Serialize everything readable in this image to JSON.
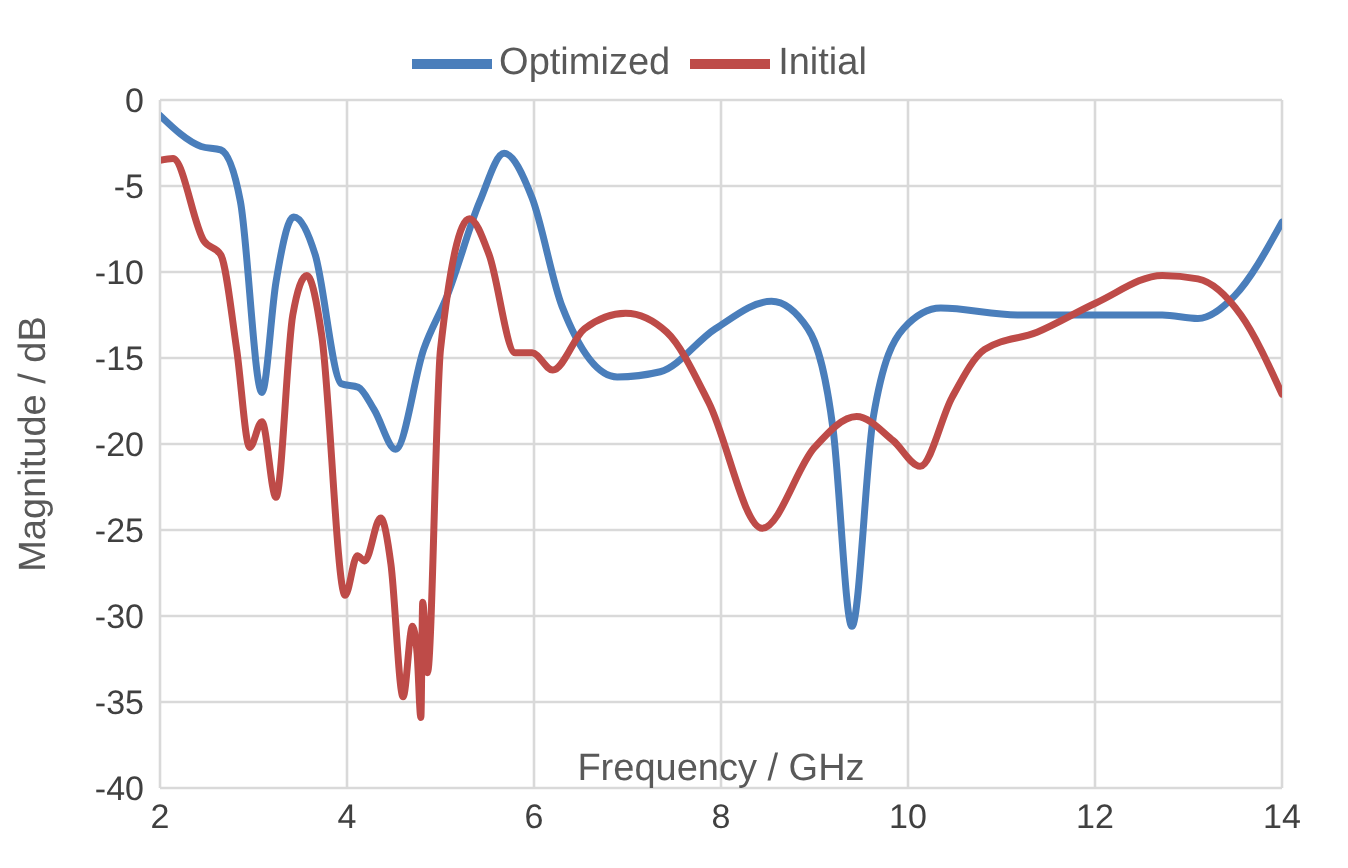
{
  "chart_data": {
    "type": "line",
    "xlabel": "Frequency / GHz",
    "ylabel": "Magnitude / dB",
    "xlim": [
      2,
      14
    ],
    "xticks": [
      2,
      4,
      6,
      8,
      10,
      12,
      14
    ],
    "ylim": [
      -40,
      0
    ],
    "yticks": [
      -40,
      -35,
      -30,
      -25,
      -20,
      -15,
      -10,
      -5,
      0
    ],
    "grid": true,
    "legend": "top",
    "marker": "none",
    "line_style": "solid",
    "series": [
      {
        "name": "Optimized",
        "color": "#4a7ebb",
        "x": [
          2.0,
          2.44,
          2.65,
          2.86,
          3.09,
          3.24,
          3.43,
          3.66,
          3.94,
          4.12,
          4.29,
          4.52,
          4.82,
          5.07,
          5.42,
          5.68,
          5.98,
          6.3,
          6.89,
          7.35,
          7.94,
          8.54,
          8.93,
          9.2,
          9.4,
          9.63,
          9.95,
          10.35,
          11.17,
          12.01,
          12.72,
          13.1,
          13.49,
          14.0
        ],
        "values": [
          -0.9,
          -2.7,
          -2.9,
          -5.9,
          -17,
          -10.6,
          -6.8,
          -9,
          -16.5,
          -16.7,
          -18,
          -20.3,
          -14.5,
          -11.4,
          -5.9,
          -3.1,
          -5.7,
          -12,
          -16.1,
          -15.8,
          -13.3,
          -11.7,
          -13.3,
          -19.2,
          -30.6,
          -18.4,
          -13.3,
          -12.1,
          -12.5,
          -12.5,
          -12.5,
          -12.7,
          -11.4,
          -7.1
        ]
      },
      {
        "name": "Initial",
        "color": "#be4b48",
        "x": [
          2.0,
          2.14,
          2.47,
          2.65,
          2.82,
          2.96,
          3.09,
          3.24,
          3.42,
          3.57,
          3.73,
          3.98,
          4.11,
          4.19,
          4.36,
          4.47,
          4.6,
          4.7,
          4.75,
          4.79,
          4.81,
          4.86,
          5.0,
          5.31,
          5.52,
          5.8,
          5.98,
          6.2,
          6.54,
          6.98,
          7.42,
          7.87,
          8.44,
          9.0,
          9.45,
          9.84,
          10.13,
          10.47,
          10.82,
          11.38,
          12.01,
          12.72,
          13.1,
          13.56,
          14.0
        ],
        "values": [
          -3.5,
          -3.4,
          -8.2,
          -9,
          -14.5,
          -20.2,
          -18.7,
          -23.1,
          -12.5,
          -10.2,
          -13.7,
          -28.8,
          -26.5,
          -26.8,
          -24.3,
          -27,
          -34.7,
          -30.6,
          -32.2,
          -35.9,
          -29.2,
          -33.3,
          -14.5,
          -6.9,
          -9,
          -14.7,
          -14.7,
          -15.7,
          -13.3,
          -12.4,
          -13.5,
          -17.6,
          -24.9,
          -20.2,
          -18.4,
          -19.8,
          -21.3,
          -17.3,
          -14.5,
          -13.5,
          -11.8,
          -10.2,
          -10.4,
          -12.5,
          -17.1
        ]
      }
    ]
  }
}
